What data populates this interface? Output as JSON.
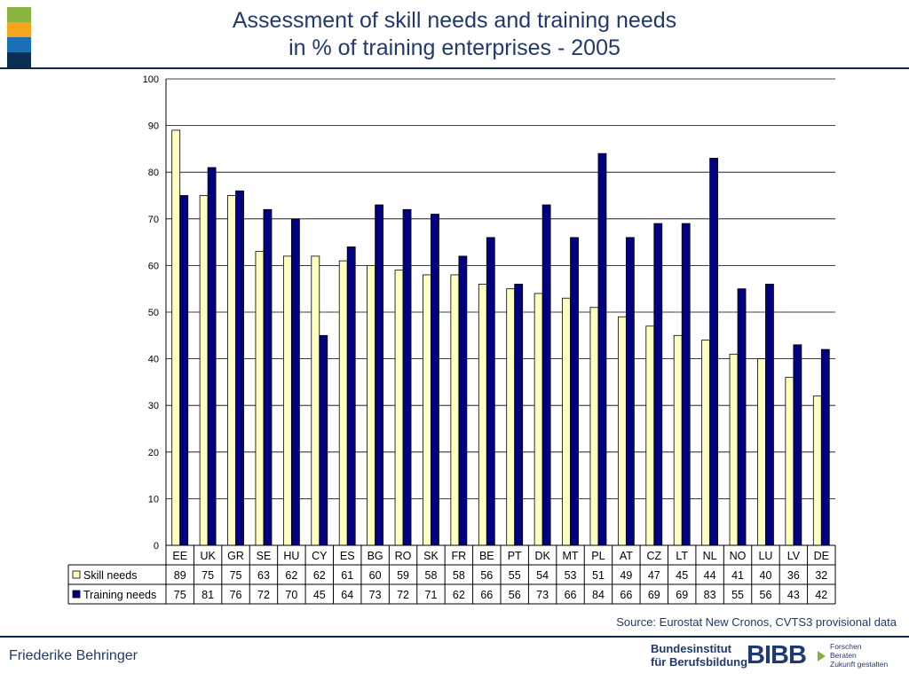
{
  "header": {
    "title_line1": "Assessment of skill needs and training needs",
    "title_line2": "in % of training enterprises - 2005",
    "strip_colors": [
      "#8ab63f",
      "#f5a51e",
      "#1a6fb5",
      "#0b2e52"
    ]
  },
  "chart_data": {
    "type": "bar",
    "categories": [
      "EE",
      "UK",
      "GR",
      "SE",
      "HU",
      "CY",
      "ES",
      "BG",
      "RO",
      "SK",
      "FR",
      "BE",
      "PT",
      "DK",
      "MT",
      "PL",
      "AT",
      "CZ",
      "LT",
      "NL",
      "NO",
      "LU",
      "LV",
      "DE"
    ],
    "series": [
      {
        "name": "Skill needs",
        "color": "#ffffc0",
        "values": [
          89,
          75,
          75,
          63,
          62,
          62,
          61,
          60,
          59,
          58,
          58,
          56,
          55,
          54,
          53,
          51,
          49,
          47,
          45,
          44,
          41,
          40,
          36,
          32
        ]
      },
      {
        "name": "Training needs",
        "color": "#000080",
        "values": [
          75,
          81,
          76,
          72,
          70,
          45,
          64,
          73,
          72,
          71,
          62,
          66,
          56,
          73,
          66,
          84,
          66,
          69,
          69,
          83,
          55,
          56,
          43,
          42
        ]
      }
    ],
    "ylim": [
      0,
      100
    ],
    "yticks": [
      0,
      10,
      20,
      30,
      40,
      50,
      60,
      70,
      80,
      90,
      100
    ],
    "grid": true,
    "legend": "data-table"
  },
  "footer": {
    "source": "Source: Eurostat New Cronos, CVTS3 provisional data",
    "author": "Friederike Behringer",
    "logo_institut_line1": "Bundesinstitut",
    "logo_institut_line2": "für Berufsbildung",
    "logo_mark": "BIBB",
    "logo_tagline_line1": "Forschen",
    "logo_tagline_line2": "Beraten",
    "logo_tagline_line3": "Zukunft gestalten"
  }
}
